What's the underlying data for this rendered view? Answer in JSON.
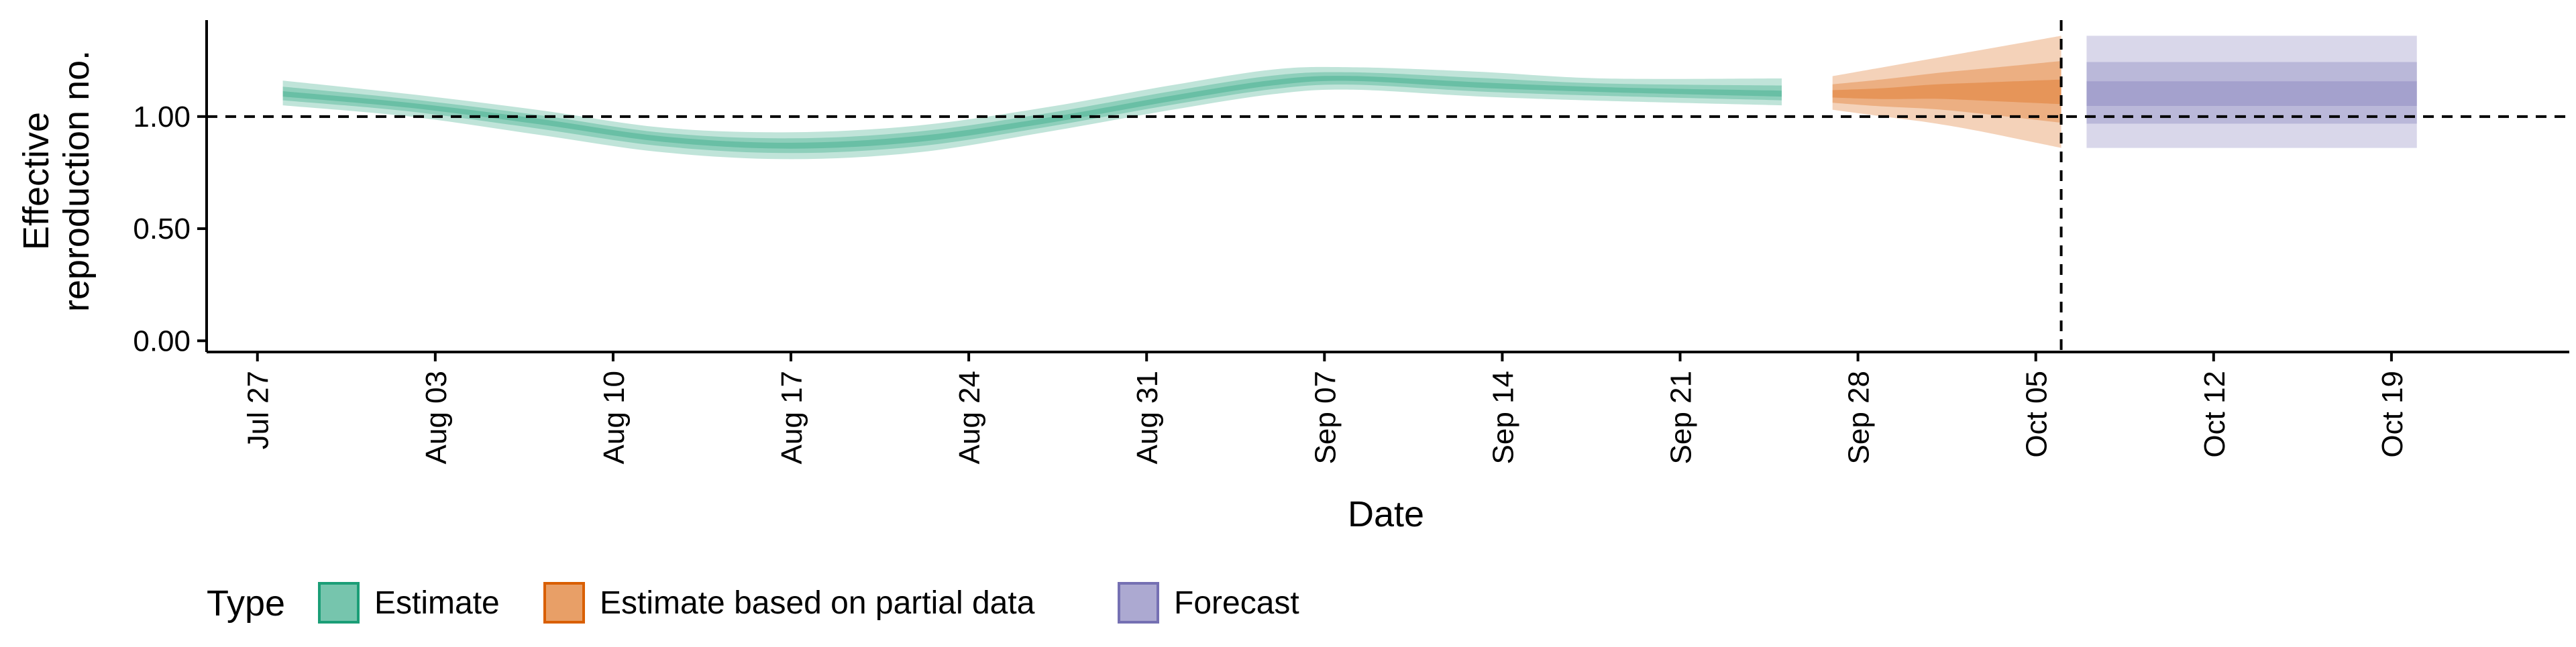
{
  "chart_data": {
    "type": "area",
    "xlabel": "Date",
    "ylabel_lines": [
      "Effective",
      "reproduction no."
    ],
    "ylim": [
      -0.05,
      1.43
    ],
    "y_ticks": [
      0.0,
      0.5,
      1.0
    ],
    "y_tick_labels": [
      "0.00",
      "0.50",
      "1.00"
    ],
    "x_range": [
      "2020-07-25",
      "2020-10-26"
    ],
    "x_ticks": [
      "2020-07-27",
      "2020-08-03",
      "2020-08-10",
      "2020-08-17",
      "2020-08-24",
      "2020-08-31",
      "2020-09-07",
      "2020-09-14",
      "2020-09-21",
      "2020-09-28",
      "2020-10-05",
      "2020-10-12",
      "2020-10-19"
    ],
    "x_tick_labels": [
      "Jul 27",
      "Aug 03",
      "Aug 10",
      "Aug 17",
      "Aug 24",
      "Aug 31",
      "Sep 07",
      "Sep 14",
      "Sep 21",
      "Sep 28",
      "Oct 05",
      "Oct 12",
      "Oct 19"
    ],
    "reference_line_y": 1.0,
    "vertical_line_x": "2020-10-06",
    "grid": false,
    "legend_title": "Type",
    "legend_position": "bottom-left",
    "series": [
      {
        "name": "Estimate",
        "color": "#1b9e77",
        "x": [
          "2020-07-28",
          "2020-08-02",
          "2020-08-07",
          "2020-08-12",
          "2020-08-17",
          "2020-08-22",
          "2020-08-27",
          "2020-09-01",
          "2020-09-05",
          "2020-09-08",
          "2020-09-13",
          "2020-09-18",
          "2020-09-25"
        ],
        "median": [
          1.1,
          1.05,
          0.98,
          0.9,
          0.87,
          0.9,
          0.98,
          1.08,
          1.15,
          1.17,
          1.14,
          1.12,
          1.1
        ],
        "outer_lower": [
          1.05,
          1.0,
          0.92,
          0.84,
          0.81,
          0.84,
          0.93,
          1.03,
          1.1,
          1.12,
          1.09,
          1.07,
          1.05
        ],
        "outer_upper": [
          1.16,
          1.1,
          1.03,
          0.95,
          0.93,
          0.96,
          1.04,
          1.14,
          1.21,
          1.22,
          1.2,
          1.17,
          1.17
        ]
      },
      {
        "name": "Estimate based on partial data",
        "color": "#d95f02",
        "x": [
          "2020-09-27",
          "2020-09-29",
          "2020-10-01",
          "2020-10-03",
          "2020-10-06"
        ],
        "median": [
          1.1,
          1.1,
          1.11,
          1.11,
          1.11
        ],
        "outer_lower": [
          1.03,
          1.0,
          0.97,
          0.93,
          0.86
        ],
        "outer_upper": [
          1.18,
          1.22,
          1.26,
          1.3,
          1.36
        ]
      },
      {
        "name": "Forecast",
        "color": "#7570b3",
        "x": [
          "2020-10-07",
          "2020-10-20"
        ],
        "median": [
          1.1,
          1.1
        ],
        "outer_lower": [
          0.86,
          0.86
        ],
        "outer_upper": [
          1.36,
          1.36
        ]
      }
    ]
  }
}
